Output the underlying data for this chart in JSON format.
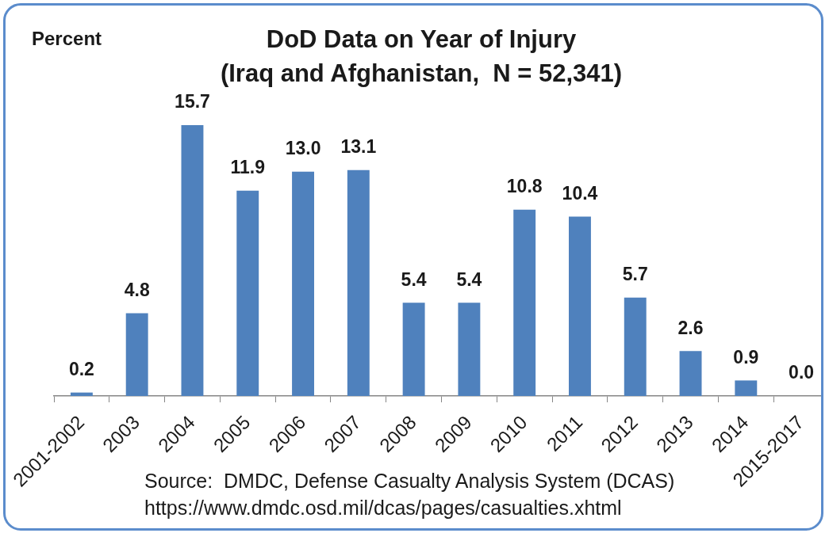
{
  "chart_data": {
    "type": "bar",
    "title": "DoD Data on Year of Injury\n(Iraq and Afghanistan,  N = 52,341)",
    "ylabel": "Percent",
    "categories": [
      "2001-2002",
      "2003",
      "2004",
      "2005",
      "2006",
      "2007",
      "2008",
      "2009",
      "2010",
      "2011",
      "2012",
      "2013",
      "2014",
      "2015-2017"
    ],
    "values": [
      0.2,
      4.8,
      15.7,
      11.9,
      13.0,
      13.1,
      5.4,
      5.4,
      10.8,
      10.4,
      5.7,
      2.6,
      0.9,
      0.0
    ],
    "value_labels": [
      "0.2",
      "4.8",
      "15.7",
      "11.9",
      "13.0",
      "13.1",
      "5.4",
      "5.4",
      "10.8",
      "10.4",
      "5.7",
      "2.6",
      "0.9",
      "0.0"
    ],
    "color": "#4f81bd",
    "annotations": [
      "Source:  DMDC, Defense Casualty Analysis System (DCAS)",
      "https://www.dmdc.osd.mil/dcas/pages/casualties.xhtml"
    ]
  }
}
